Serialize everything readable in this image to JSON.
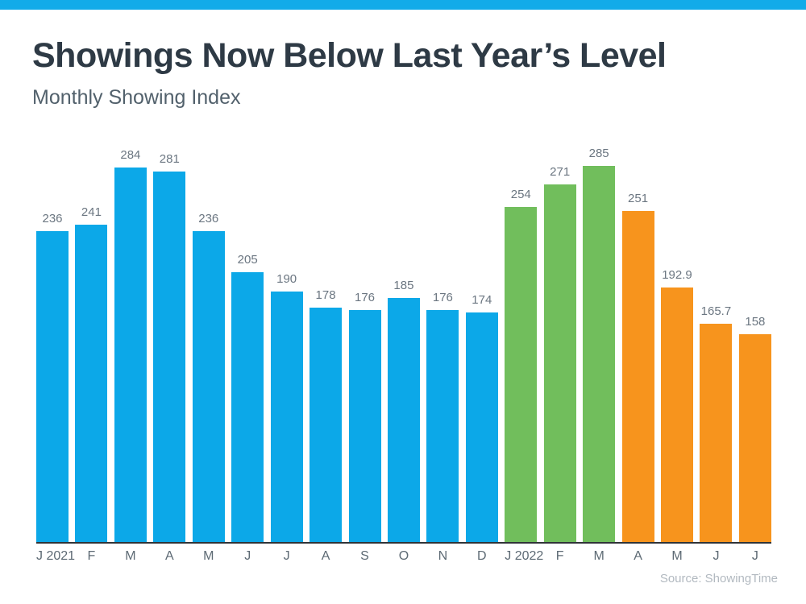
{
  "page": {
    "background": "#ffffff",
    "accent_bar_color": "#12abe9"
  },
  "header": {
    "title": "Showings Now Below Last Year’s Level",
    "subtitle": "Monthly Showing Index"
  },
  "footer": {
    "source_label": "Source: ShowingTime"
  },
  "colors": {
    "bar_blue_2021": "#0ca8e8",
    "bar_green_2022": "#71be5c",
    "bar_orange_2022": "#f7941d",
    "title_text": "#2e3a45",
    "subtitle_text": "#52616c",
    "value_label_text": "#6b7681",
    "axis_label_text": "#5d6a74",
    "axis_line": "#303438",
    "source_text": "#b2b9c0"
  },
  "chart_data": {
    "type": "bar",
    "title": "Showings Now Below Last Year’s Level",
    "subtitle": "Monthly Showing Index",
    "categories": [
      "J 2021",
      "F",
      "M",
      "A",
      "M",
      "J",
      "J",
      "A",
      "S",
      "O",
      "N",
      "D",
      "J 2022",
      "F",
      "M",
      "A",
      "M",
      "J",
      "J"
    ],
    "values": [
      236,
      241,
      284,
      281,
      236,
      205,
      190,
      178,
      176,
      185,
      176,
      174,
      254,
      271,
      285,
      251,
      192.9,
      165.7,
      158
    ],
    "bar_colors": [
      "#0ca8e8",
      "#0ca8e8",
      "#0ca8e8",
      "#0ca8e8",
      "#0ca8e8",
      "#0ca8e8",
      "#0ca8e8",
      "#0ca8e8",
      "#0ca8e8",
      "#0ca8e8",
      "#0ca8e8",
      "#0ca8e8",
      "#71be5c",
      "#71be5c",
      "#71be5c",
      "#f7941d",
      "#f7941d",
      "#f7941d",
      "#f7941d"
    ],
    "xlabel": "",
    "ylabel": "",
    "ylim": [
      0,
      285
    ],
    "grid": false,
    "legend": "none",
    "value_labels_shown": true,
    "source": "Source: ShowingTime"
  }
}
